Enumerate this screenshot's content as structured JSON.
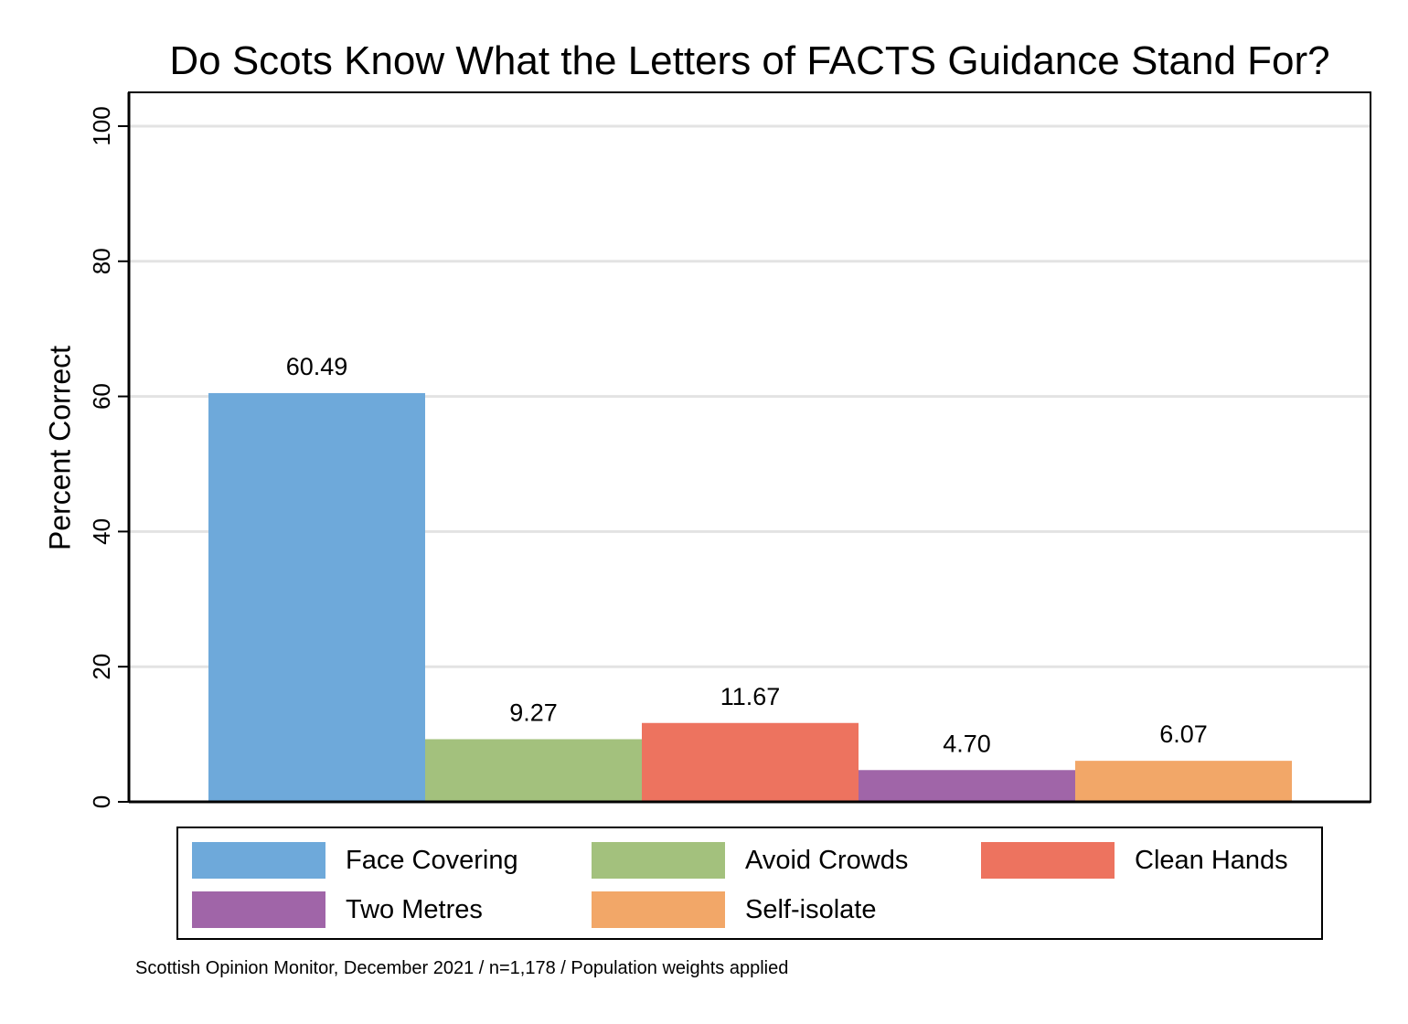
{
  "chart_data": {
    "type": "bar",
    "title": "Do Scots Know What the Letters of FACTS Guidance Stand For?",
    "ylabel": "Percent Correct",
    "xlabel": "",
    "ylim": [
      0,
      105
    ],
    "yticks": [
      "0",
      "20",
      "40",
      "60",
      "80",
      "100"
    ],
    "grid": true,
    "legend_position": "bottom",
    "categories": [
      "Face Covering",
      "Avoid Crowds",
      "Clean Hands",
      "Two Metres",
      "Self-isolate"
    ],
    "values": [
      60.49,
      9.27,
      11.67,
      4.7,
      6.07
    ],
    "value_labels": [
      "60.49",
      "9.27",
      "11.67",
      "4.70",
      "6.07"
    ],
    "colors": [
      "#6ea9da",
      "#a3c17d",
      "#ed735f",
      "#a065a8",
      "#f2a768"
    ]
  },
  "note": "Scottish Opinion Monitor, December 2021 / n=1,178 / Population weights applied"
}
